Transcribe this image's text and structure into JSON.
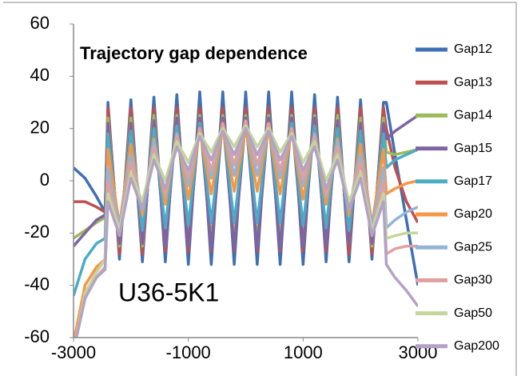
{
  "chart_data": {
    "type": "line",
    "title": "Trajectory gap dependence",
    "annotation": "U36-5K1",
    "x": [
      -3000,
      -2800,
      -2600,
      -2450,
      -2400,
      -2200,
      -2000,
      -1800,
      -1600,
      -1400,
      -1200,
      -1000,
      -800,
      -600,
      -400,
      -200,
      0,
      200,
      400,
      600,
      800,
      1000,
      1200,
      1400,
      1600,
      1800,
      2000,
      2200,
      2400,
      2450,
      2600,
      2800,
      3000
    ],
    "series": [
      {
        "name": "Gap12",
        "color": "#3f6fb4",
        "values": [
          5,
          1,
          -6,
          -12,
          30,
          -30,
          31,
          -31,
          32,
          -31,
          33,
          -32,
          34,
          -32,
          34,
          -32,
          34,
          -32,
          34,
          -32,
          34,
          -32,
          33,
          -31,
          32,
          -31,
          31,
          -30,
          30,
          30,
          10,
          -15,
          -40
        ]
      },
      {
        "name": "Gap13",
        "color": "#c0504d",
        "values": [
          -8,
          -8,
          -10,
          -12,
          28,
          -28,
          28,
          -28,
          28,
          -27,
          28,
          -27,
          28,
          -27,
          28,
          -27,
          28,
          -27,
          28,
          -27,
          28,
          -27,
          28,
          -27,
          28,
          -28,
          28,
          -28,
          28,
          20,
          5,
          -8,
          -16
        ]
      },
      {
        "name": "Gap14",
        "color": "#9bbb59",
        "values": [
          -22,
          -19,
          -16,
          -14,
          24,
          -25,
          24,
          -25,
          25,
          -24,
          25,
          -24,
          25,
          -23,
          25,
          -23,
          25,
          -23,
          25,
          -23,
          25,
          -24,
          25,
          -24,
          25,
          -24,
          24,
          -25,
          24,
          11,
          10,
          11,
          12
        ]
      },
      {
        "name": "Gap15",
        "color": "#8064a2",
        "values": [
          -25,
          -20,
          -15,
          -13,
          22,
          -24,
          22,
          -24,
          23,
          -25,
          24,
          -25,
          24,
          -26,
          24,
          -26,
          24,
          -26,
          24,
          -26,
          24,
          -25,
          24,
          -25,
          23,
          -24,
          22,
          -24,
          22,
          16,
          19,
          22,
          25
        ]
      },
      {
        "name": "Gap17",
        "color": "#4bacc6",
        "values": [
          -44,
          -30,
          -24,
          -22,
          18,
          -21,
          19,
          -19,
          20,
          -18,
          21,
          -17,
          22,
          -16,
          22,
          -16,
          22,
          -16,
          22,
          -16,
          22,
          -17,
          21,
          -18,
          20,
          -19,
          19,
          -21,
          18,
          5,
          8,
          10,
          12
        ]
      },
      {
        "name": "Gap20",
        "color": "#f79646",
        "values": [
          -62,
          -40,
          -33,
          -30,
          12,
          -17,
          14,
          -13,
          16,
          -9,
          18,
          -7,
          19,
          -5,
          20,
          -4,
          20,
          -4,
          20,
          -5,
          19,
          -7,
          18,
          -9,
          16,
          -13,
          14,
          -17,
          12,
          -5,
          -3,
          -1,
          0
        ]
      },
      {
        "name": "Gap25",
        "color": "#95b3d7",
        "values": [
          -65,
          -45,
          -35,
          -30,
          5,
          -18,
          10,
          -11,
          15,
          -6,
          18,
          -2,
          20,
          1,
          21,
          2,
          22,
          2,
          21,
          1,
          20,
          -2,
          18,
          -6,
          15,
          -11,
          10,
          -18,
          5,
          -18,
          -15,
          -12,
          -10
        ]
      },
      {
        "name": "Gap30",
        "color": "#e0a09e",
        "values": [
          -65,
          -45,
          -37,
          -33,
          0,
          -20,
          7,
          -11,
          13,
          -5,
          17,
          1,
          20,
          4,
          22,
          6,
          23,
          6,
          22,
          4,
          20,
          1,
          17,
          -5,
          13,
          -11,
          7,
          -20,
          0,
          -28,
          -26,
          -25,
          -25
        ]
      },
      {
        "name": "Gap50",
        "color": "#c3d69b",
        "values": [
          -65,
          -43,
          -35,
          -30,
          -5,
          -19,
          3,
          -8,
          10,
          0,
          15,
          7,
          18,
          11,
          20,
          13,
          21,
          13,
          20,
          11,
          18,
          7,
          15,
          0,
          10,
          -8,
          3,
          -19,
          -5,
          -22,
          -21,
          -20,
          -20
        ]
      },
      {
        "name": "Gap200",
        "color": "#b3a2c7",
        "values": [
          -65,
          -45,
          -37,
          -34,
          -8,
          -21,
          1,
          -11,
          8,
          -3,
          13,
          4,
          17,
          8,
          19,
          10,
          20,
          10,
          19,
          8,
          17,
          4,
          13,
          -3,
          8,
          -11,
          1,
          -21,
          -8,
          -32,
          -37,
          -42,
          -48
        ]
      }
    ],
    "xlim": [
      -3000,
      3000
    ],
    "xticks": [
      -3000,
      -1000,
      1000,
      3000
    ],
    "ylim": [
      -60,
      60
    ],
    "yticks": [
      60,
      40,
      20,
      0,
      -20,
      -40,
      -60
    ],
    "grid": false
  }
}
